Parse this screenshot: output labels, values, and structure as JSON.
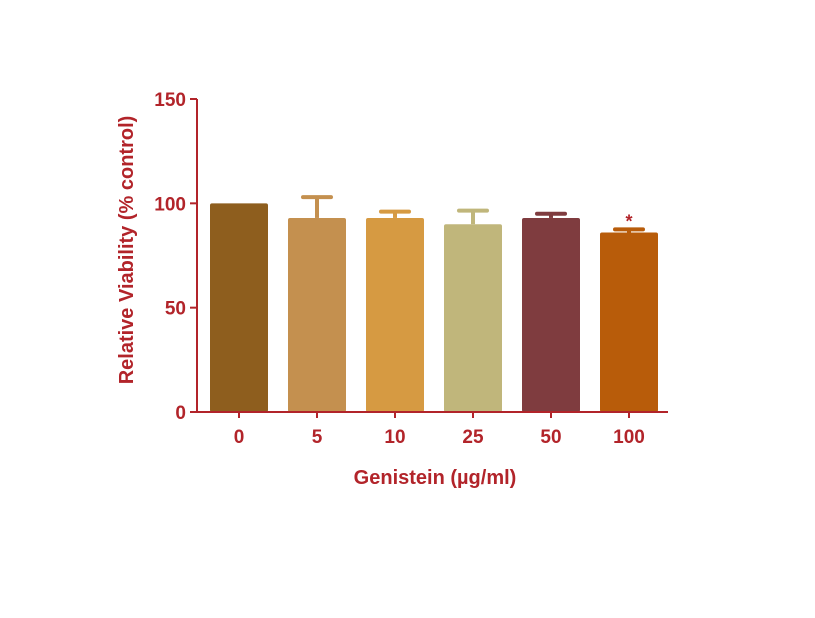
{
  "chart_data": {
    "type": "bar",
    "title": "",
    "xlabel": "Genistein (µg/ml)",
    "ylabel": "Relative Viability (% control)",
    "categories": [
      "0",
      "5",
      "10",
      "25",
      "50",
      "100"
    ],
    "values": [
      100,
      93,
      93,
      90,
      93,
      86
    ],
    "errors": [
      0,
      10,
      3,
      6.5,
      2,
      1.5
    ],
    "annotations": [
      "",
      "",
      "",
      "",
      "",
      "*"
    ],
    "colors": [
      "#8e5e1e",
      "#c4904f",
      "#d69a42",
      "#c0b67b",
      "#7f3c3f",
      "#b85c0a"
    ],
    "ylim": [
      0,
      150
    ],
    "yticks": [
      0,
      50,
      100,
      150
    ],
    "axis_color": "#b2242a",
    "grid": false
  }
}
